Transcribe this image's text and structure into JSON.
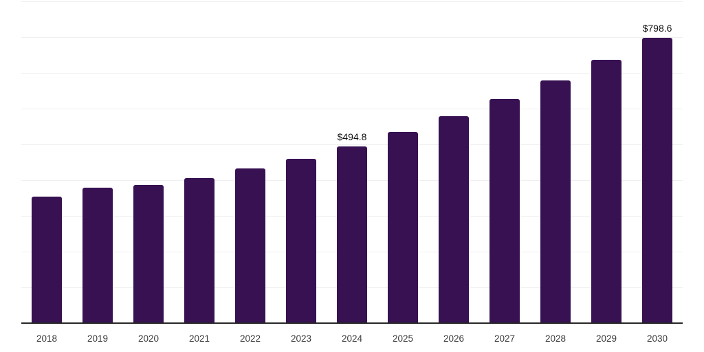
{
  "chart_data": {
    "type": "bar",
    "categories": [
      "2018",
      "2019",
      "2020",
      "2021",
      "2022",
      "2023",
      "2024",
      "2025",
      "2026",
      "2027",
      "2028",
      "2029",
      "2030"
    ],
    "values": [
      354,
      378,
      387,
      406,
      432,
      459,
      494.8,
      535,
      578,
      627,
      678,
      737,
      798.6
    ],
    "data_labels": {
      "2024": "$494.8",
      "2030": "$798.6"
    },
    "title": "",
    "xlabel": "",
    "ylabel": "",
    "ylim": [
      0,
      900
    ],
    "grid": {
      "show": true,
      "interval": 100
    },
    "legend": {
      "show": false
    },
    "colors": {
      "bar": "#371152",
      "gridline": "#efefef",
      "axis_line": "#262626",
      "data_label": "#111111",
      "tick_label": "#3a3a3a",
      "background": "#ffffff"
    }
  }
}
